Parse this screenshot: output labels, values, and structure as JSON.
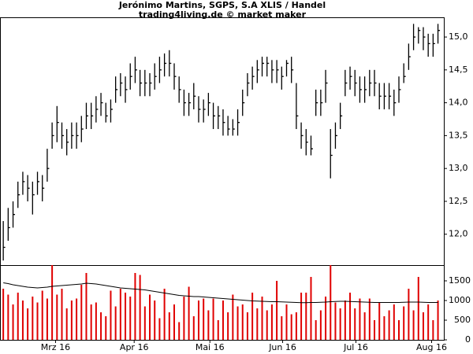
{
  "chart_data": {
    "type": "ohlc_volume",
    "title": "Jerónimo Martins, SGPS, S.A XLIS / Handel",
    "subtitle": "trading4living.de © market maker",
    "ylim": [
      11.53,
      15.3
    ],
    "yticks": [
      {
        "value": 12.0,
        "label": "12,0"
      },
      {
        "value": 12.5,
        "label": "12,5"
      },
      {
        "value": 13.0,
        "label": "13,0"
      },
      {
        "value": 13.5,
        "label": "13,5"
      },
      {
        "value": 14.0,
        "label": "14,0"
      },
      {
        "value": 14.5,
        "label": "14,5"
      },
      {
        "value": 15.0,
        "label": "15,0"
      }
    ],
    "y2lim": [
      0,
      1900
    ],
    "y2ticks": [
      0,
      500,
      1000,
      1500
    ],
    "xlim": [
      -0.67,
      90.2
    ],
    "xticks": [
      {
        "value": 10.7,
        "label": "Mrz 16"
      },
      {
        "value": 26.8,
        "label": "Apr 16"
      },
      {
        "value": 42.3,
        "label": "Mai 16"
      },
      {
        "value": 57.2,
        "label": "Jun 16"
      },
      {
        "value": 72.2,
        "label": "Jul 16"
      },
      {
        "value": 87.7,
        "label": "Aug 16"
      }
    ],
    "price_color": "#000000",
    "volume_color": "#e00000",
    "ma_color": "#000000",
    "high": [
      12.2,
      12.4,
      12.5,
      12.8,
      12.95,
      12.9,
      12.8,
      12.95,
      12.9,
      13.3,
      13.7,
      13.95,
      13.7,
      13.6,
      13.7,
      13.7,
      13.8,
      14.0,
      14.0,
      14.1,
      14.15,
      14.0,
      14.05,
      14.4,
      14.45,
      14.4,
      14.6,
      14.7,
      14.5,
      14.5,
      14.45,
      14.6,
      14.7,
      14.75,
      14.8,
      14.6,
      14.4,
      14.2,
      14.15,
      14.3,
      14.1,
      14.05,
      14.15,
      14.0,
      13.95,
      13.9,
      13.8,
      13.75,
      13.9,
      14.2,
      14.45,
      14.55,
      14.65,
      14.7,
      14.7,
      14.65,
      14.65,
      14.55,
      14.65,
      14.7,
      14.3,
      13.7,
      13.6,
      13.5,
      14.2,
      14.2,
      14.5,
      13.6,
      13.7,
      14.0,
      14.5,
      14.55,
      14.5,
      14.4,
      14.4,
      14.5,
      14.5,
      14.3,
      14.3,
      14.3,
      14.2,
      14.4,
      14.6,
      14.9,
      15.2,
      15.15,
      15.15,
      15.05,
      15.05,
      15.2
    ],
    "low": [
      11.6,
      11.9,
      12.1,
      12.4,
      12.6,
      12.5,
      12.3,
      12.6,
      12.5,
      12.8,
      13.3,
      13.4,
      13.3,
      13.2,
      13.3,
      13.3,
      13.4,
      13.6,
      13.6,
      13.7,
      13.8,
      13.7,
      13.7,
      14.0,
      14.1,
      14.0,
      14.2,
      14.3,
      14.1,
      14.1,
      14.1,
      14.2,
      14.3,
      14.4,
      14.4,
      14.2,
      14.0,
      13.8,
      13.8,
      13.9,
      13.7,
      13.7,
      13.8,
      13.6,
      13.6,
      13.5,
      13.5,
      13.5,
      13.5,
      13.8,
      14.1,
      14.2,
      14.3,
      14.4,
      14.4,
      14.3,
      14.3,
      14.2,
      14.4,
      14.3,
      13.6,
      13.3,
      13.2,
      13.2,
      13.8,
      13.8,
      14.0,
      12.85,
      13.3,
      13.6,
      14.1,
      14.2,
      14.1,
      14.0,
      14.0,
      14.1,
      14.1,
      13.9,
      13.9,
      13.9,
      13.8,
      14.0,
      14.3,
      14.5,
      14.8,
      14.9,
      14.8,
      14.7,
      14.7,
      14.9
    ],
    "close": [
      11.8,
      12.1,
      12.3,
      12.6,
      12.8,
      12.7,
      12.6,
      12.8,
      12.7,
      13.0,
      13.5,
      13.7,
      13.5,
      13.4,
      13.5,
      13.5,
      13.6,
      13.8,
      13.8,
      13.9,
      14.0,
      13.8,
      13.9,
      14.2,
      14.3,
      14.2,
      14.4,
      14.5,
      14.3,
      14.3,
      14.3,
      14.4,
      14.5,
      14.6,
      14.6,
      14.4,
      14.2,
      14.0,
      14.0,
      14.1,
      13.9,
      13.9,
      14.0,
      13.8,
      13.8,
      13.7,
      13.6,
      13.6,
      13.7,
      14.0,
      14.3,
      14.4,
      14.5,
      14.6,
      14.6,
      14.5,
      14.5,
      14.4,
      14.6,
      14.5,
      13.8,
      13.5,
      13.4,
      13.3,
      14.0,
      14.0,
      14.3,
      13.2,
      13.5,
      13.8,
      14.3,
      14.4,
      14.3,
      14.2,
      14.2,
      14.3,
      14.3,
      14.1,
      14.1,
      14.1,
      14.0,
      14.2,
      14.4,
      14.7,
      15.0,
      15.1,
      15.0,
      14.9,
      14.9,
      15.1
    ],
    "volume": [
      1300,
      1150,
      900,
      1200,
      1000,
      800,
      1100,
      950,
      1250,
      1050,
      1900,
      1150,
      1300,
      800,
      1000,
      1050,
      1400,
      1700,
      900,
      950,
      700,
      600,
      1250,
      850,
      1300,
      1200,
      1100,
      1700,
      1650,
      850,
      1150,
      1000,
      550,
      1300,
      700,
      900,
      450,
      1100,
      1350,
      600,
      1000,
      1050,
      750,
      1050,
      500,
      1000,
      700,
      1150,
      850,
      900,
      700,
      1200,
      800,
      1100,
      750,
      900,
      1500,
      600,
      900,
      650,
      700,
      1200,
      1200,
      1600,
      500,
      750,
      1100,
      1900,
      950,
      800,
      1000,
      1200,
      800,
      1050,
      700,
      1050,
      500,
      950,
      600,
      750,
      900,
      500,
      850,
      1300,
      750,
      1600,
      700,
      900,
      500,
      1000
    ],
    "volume_ma": [
      1450,
      1430,
      1400,
      1380,
      1360,
      1340,
      1330,
      1320,
      1330,
      1340,
      1360,
      1370,
      1380,
      1390,
      1400,
      1410,
      1420,
      1440,
      1430,
      1420,
      1400,
      1380,
      1360,
      1340,
      1320,
      1310,
      1300,
      1290,
      1280,
      1270,
      1250,
      1230,
      1210,
      1190,
      1170,
      1150,
      1130,
      1120,
      1110,
      1100,
      1100,
      1090,
      1080,
      1070,
      1060,
      1050,
      1040,
      1030,
      1020,
      1010,
      1000,
      990,
      985,
      980,
      975,
      970,
      970,
      965,
      960,
      955,
      950,
      945,
      945,
      950,
      950,
      955,
      960,
      970,
      975,
      980,
      980,
      975,
      970,
      965,
      960,
      955,
      950,
      950,
      950,
      950,
      950,
      950,
      955,
      960,
      960,
      960,
      955,
      950,
      950,
      950
    ]
  }
}
